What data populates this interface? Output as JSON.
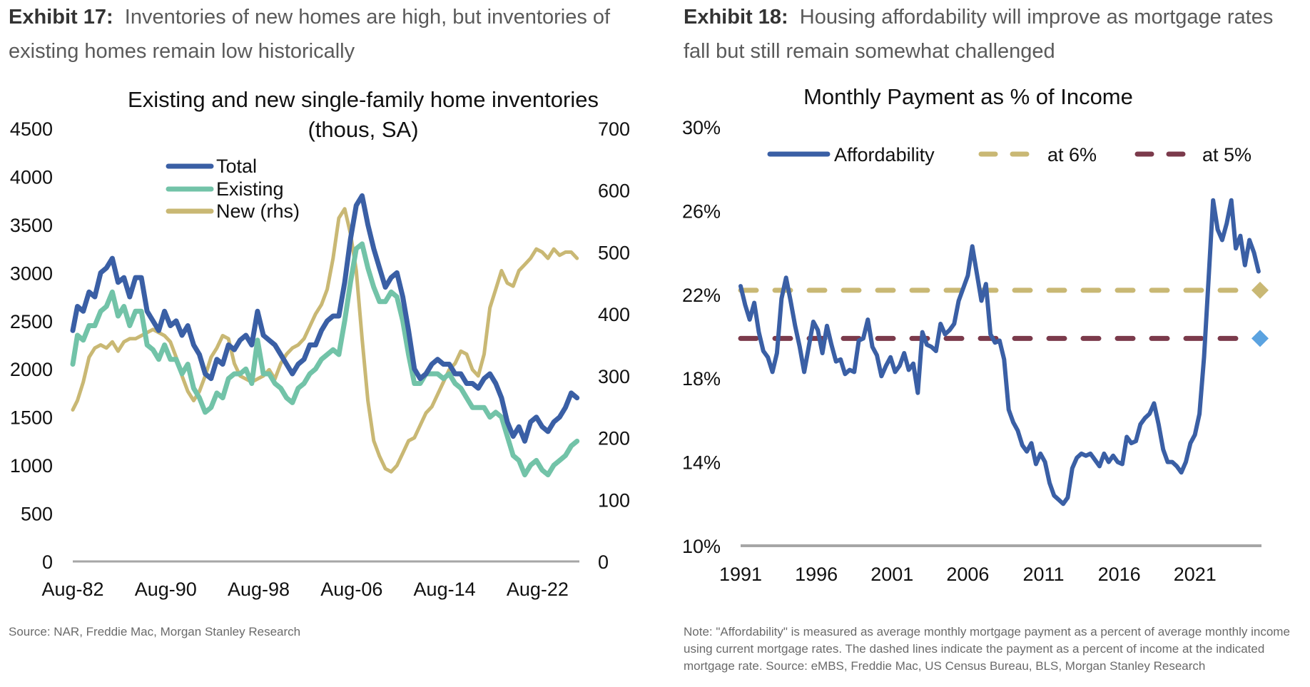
{
  "exhibit17": {
    "label": "Exhibit 17:",
    "caption": "Inventories of new homes are high, but inventories of existing homes remain low historically",
    "source": "Source: NAR, Freddie Mac, Morgan Stanley Research"
  },
  "exhibit18": {
    "label": "Exhibit 18:",
    "caption": "Housing affordability will improve as mortgage rates fall but still remain somewhat challenged",
    "note": "Note: \"Affordability\" is measured as average monthly mortgage payment as a percent of average monthly income using current mortgage rates. The dashed lines indicate the payment as a percent of income at the indicated mortgage rate. Source: eMBS, Freddie Mac, US Census Bureau, BLS, Morgan Stanley Research"
  },
  "chart_data": [
    {
      "type": "line",
      "title": "Existing and new single-family home inventories",
      "subtitle": "(thous, SA)",
      "xlabel": "",
      "ylabel": "",
      "x_tick_labels": [
        "Aug-82",
        "Aug-90",
        "Aug-98",
        "Aug-06",
        "Aug-14",
        "Aug-22"
      ],
      "x_tick_years": [
        1982.6,
        1990.6,
        1998.6,
        2006.6,
        2014.6,
        2022.6
      ],
      "xlim": [
        1982.6,
        2026.2
      ],
      "y_left": {
        "ylim": [
          0,
          4500
        ],
        "ticks": [
          0,
          500,
          1000,
          1500,
          2000,
          2500,
          3000,
          3500,
          4000,
          4500
        ]
      },
      "y_right": {
        "ylim": [
          0,
          700
        ],
        "ticks": [
          0,
          100,
          200,
          300,
          400,
          500,
          600,
          700
        ]
      },
      "grid": false,
      "legend": {
        "placement": "top-left",
        "entries": [
          "Total",
          "Existing",
          "New (rhs)"
        ]
      },
      "series": [
        {
          "name": "Total",
          "axis": "left",
          "color": "#3a5fa5",
          "x": [
            1982.6,
            1983.0,
            1983.5,
            1984.0,
            1984.5,
            1985.0,
            1985.5,
            1986.0,
            1986.5,
            1987.0,
            1987.5,
            1988.0,
            1988.5,
            1989.0,
            1989.5,
            1990.0,
            1990.5,
            1991.0,
            1991.5,
            1992.0,
            1992.5,
            1993.0,
            1993.5,
            1994.0,
            1994.5,
            1995.0,
            1995.5,
            1996.0,
            1996.5,
            1997.0,
            1997.5,
            1998.0,
            1998.5,
            1999.0,
            1999.5,
            2000.0,
            2000.5,
            2001.0,
            2001.5,
            2002.0,
            2002.5,
            2003.0,
            2003.5,
            2004.0,
            2004.5,
            2005.0,
            2005.5,
            2006.0,
            2006.5,
            2007.0,
            2007.5,
            2008.0,
            2008.5,
            2009.0,
            2009.5,
            2010.0,
            2010.5,
            2011.0,
            2011.5,
            2012.0,
            2012.5,
            2013.0,
            2013.5,
            2014.0,
            2014.5,
            2015.0,
            2015.5,
            2016.0,
            2016.5,
            2017.0,
            2017.5,
            2018.0,
            2018.5,
            2019.0,
            2019.5,
            2020.0,
            2020.5,
            2021.0,
            2021.5,
            2022.0,
            2022.5,
            2023.0,
            2023.5,
            2024.0,
            2024.5,
            2025.0,
            2025.5,
            2026.0
          ],
          "values": [
            2400,
            2650,
            2600,
            2800,
            2750,
            3000,
            3050,
            3150,
            2900,
            2950,
            2750,
            2950,
            2950,
            2600,
            2500,
            2400,
            2600,
            2450,
            2500,
            2350,
            2450,
            2250,
            2150,
            1950,
            1900,
            2100,
            2050,
            2250,
            2200,
            2300,
            2350,
            2250,
            2600,
            2350,
            2300,
            2250,
            2150,
            2050,
            1950,
            2050,
            2100,
            2250,
            2250,
            2400,
            2500,
            2550,
            2550,
            2900,
            3350,
            3700,
            3800,
            3500,
            3250,
            3050,
            2850,
            2950,
            3000,
            2750,
            2400,
            2000,
            1900,
            1950,
            2050,
            2100,
            2050,
            2050,
            1950,
            1950,
            1850,
            1850,
            1800,
            1900,
            1950,
            1850,
            1700,
            1450,
            1300,
            1400,
            1250,
            1450,
            1500,
            1400,
            1350,
            1450,
            1500,
            1600,
            1750,
            1700
          ]
        },
        {
          "name": "Existing",
          "axis": "left",
          "color": "#72c3a8",
          "x": [
            1982.6,
            1983.0,
            1983.5,
            1984.0,
            1984.5,
            1985.0,
            1985.5,
            1986.0,
            1986.5,
            1987.0,
            1987.5,
            1988.0,
            1988.5,
            1989.0,
            1989.5,
            1990.0,
            1990.5,
            1991.0,
            1991.5,
            1992.0,
            1992.5,
            1993.0,
            1993.5,
            1994.0,
            1994.5,
            1995.0,
            1995.5,
            1996.0,
            1996.5,
            1997.0,
            1997.5,
            1998.0,
            1998.5,
            1999.0,
            1999.5,
            2000.0,
            2000.5,
            2001.0,
            2001.5,
            2002.0,
            2002.5,
            2003.0,
            2003.5,
            2004.0,
            2004.5,
            2005.0,
            2005.5,
            2006.0,
            2006.5,
            2007.0,
            2007.5,
            2008.0,
            2008.5,
            2009.0,
            2009.5,
            2010.0,
            2010.5,
            2011.0,
            2011.5,
            2012.0,
            2012.5,
            2013.0,
            2013.5,
            2014.0,
            2014.5,
            2015.0,
            2015.5,
            2016.0,
            2016.5,
            2017.0,
            2017.5,
            2018.0,
            2018.5,
            2019.0,
            2019.5,
            2020.0,
            2020.5,
            2021.0,
            2021.5,
            2022.0,
            2022.5,
            2023.0,
            2023.5,
            2024.0,
            2024.5,
            2025.0,
            2025.5,
            2026.0
          ],
          "values": [
            2050,
            2350,
            2300,
            2450,
            2450,
            2600,
            2650,
            2800,
            2550,
            2650,
            2450,
            2600,
            2600,
            2250,
            2200,
            2100,
            2250,
            2100,
            2100,
            1950,
            2050,
            1800,
            1700,
            1550,
            1600,
            1750,
            1700,
            1900,
            1950,
            1950,
            2000,
            1850,
            2300,
            1950,
            1950,
            1850,
            1800,
            1700,
            1650,
            1800,
            1850,
            1950,
            2000,
            2100,
            2150,
            2200,
            2150,
            2500,
            2900,
            3250,
            3300,
            3050,
            2850,
            2700,
            2700,
            2800,
            2750,
            2500,
            2150,
            1850,
            1850,
            1950,
            1950,
            1950,
            1900,
            1950,
            1850,
            1800,
            1700,
            1600,
            1600,
            1600,
            1500,
            1550,
            1500,
            1300,
            1100,
            1050,
            900,
            1000,
            1050,
            950,
            900,
            1000,
            1050,
            1100,
            1200,
            1250
          ]
        },
        {
          "name": "New (rhs)",
          "axis": "right",
          "color": "#c9b874",
          "x": [
            1982.6,
            1983.0,
            1983.5,
            1984.0,
            1984.5,
            1985.0,
            1985.5,
            1986.0,
            1986.5,
            1987.0,
            1987.5,
            1988.0,
            1988.5,
            1989.0,
            1989.5,
            1990.0,
            1990.5,
            1991.0,
            1991.5,
            1992.0,
            1992.5,
            1993.0,
            1993.5,
            1994.0,
            1994.5,
            1995.0,
            1995.5,
            1996.0,
            1996.5,
            1997.0,
            1997.5,
            1998.0,
            1998.5,
            1999.0,
            1999.5,
            2000.0,
            2000.5,
            2001.0,
            2001.5,
            2002.0,
            2002.5,
            2003.0,
            2003.5,
            2004.0,
            2004.5,
            2005.0,
            2005.5,
            2006.0,
            2006.5,
            2007.0,
            2007.5,
            2008.0,
            2008.5,
            2009.0,
            2009.5,
            2010.0,
            2010.5,
            2011.0,
            2011.5,
            2012.0,
            2012.5,
            2013.0,
            2013.5,
            2014.0,
            2014.5,
            2015.0,
            2015.5,
            2016.0,
            2016.5,
            2017.0,
            2017.5,
            2018.0,
            2018.5,
            2019.0,
            2019.5,
            2020.0,
            2020.5,
            2021.0,
            2021.5,
            2022.0,
            2022.5,
            2023.0,
            2023.5,
            2024.0,
            2024.5,
            2025.0,
            2025.5,
            2026.0
          ],
          "values": [
            245,
            260,
            290,
            330,
            345,
            350,
            345,
            355,
            340,
            355,
            360,
            360,
            365,
            370,
            375,
            370,
            365,
            355,
            330,
            300,
            275,
            260,
            275,
            300,
            330,
            345,
            365,
            360,
            320,
            300,
            295,
            290,
            295,
            300,
            310,
            295,
            320,
            335,
            345,
            350,
            360,
            380,
            400,
            415,
            440,
            490,
            555,
            570,
            530,
            470,
            360,
            260,
            195,
            170,
            150,
            145,
            155,
            175,
            195,
            200,
            220,
            240,
            250,
            270,
            290,
            310,
            320,
            340,
            335,
            310,
            300,
            335,
            410,
            440,
            470,
            450,
            445,
            470,
            480,
            490,
            505,
            500,
            490,
            505,
            495,
            500,
            500,
            490
          ]
        }
      ]
    },
    {
      "type": "line",
      "title": "Monthly Payment as % of Income",
      "xlabel": "",
      "ylabel": "",
      "x_tick_labels": [
        "1991",
        "1996",
        "2001",
        "2006",
        "2011",
        "2016",
        "2021"
      ],
      "x_tick_years": [
        1991,
        1996,
        2001,
        2006,
        2011,
        2016,
        2021
      ],
      "xlim": [
        1991,
        2025.3
      ],
      "ylim": [
        10,
        30
      ],
      "y_ticks": [
        10,
        14,
        18,
        22,
        26,
        30
      ],
      "y_tick_labels": [
        "10%",
        "14%",
        "18%",
        "22%",
        "26%",
        "30%"
      ],
      "grid": false,
      "legend": {
        "placement": "top",
        "entries": [
          "Affordability",
          "at 6%",
          "at 5%"
        ]
      },
      "series": [
        {
          "name": "Affordability",
          "style": "solid",
          "color": "#3a5fa5",
          "x": [
            1991.0,
            1991.3,
            1991.6,
            1991.9,
            1992.2,
            1992.5,
            1992.8,
            1993.1,
            1993.4,
            1993.7,
            1994.0,
            1994.3,
            1994.6,
            1994.9,
            1995.2,
            1995.5,
            1995.8,
            1996.1,
            1996.4,
            1996.7,
            1997.0,
            1997.3,
            1997.6,
            1997.9,
            1998.2,
            1998.5,
            1998.8,
            1999.1,
            1999.4,
            1999.7,
            2000.0,
            2000.3,
            2000.6,
            2000.9,
            2001.2,
            2001.5,
            2001.8,
            2002.1,
            2002.4,
            2002.7,
            2003.0,
            2003.3,
            2003.6,
            2003.9,
            2004.2,
            2004.5,
            2004.8,
            2005.1,
            2005.4,
            2005.7,
            2006.0,
            2006.3,
            2006.6,
            2006.9,
            2007.2,
            2007.5,
            2007.8,
            2008.1,
            2008.4,
            2008.7,
            2009.0,
            2009.3,
            2009.6,
            2009.9,
            2010.2,
            2010.5,
            2010.8,
            2011.1,
            2011.4,
            2011.7,
            2012.0,
            2012.3,
            2012.6,
            2012.9,
            2013.2,
            2013.5,
            2013.8,
            2014.1,
            2014.4,
            2014.7,
            2015.0,
            2015.3,
            2015.6,
            2015.9,
            2016.2,
            2016.5,
            2016.8,
            2017.1,
            2017.4,
            2017.7,
            2018.0,
            2018.3,
            2018.6,
            2018.9,
            2019.2,
            2019.5,
            2019.8,
            2020.1,
            2020.4,
            2020.7,
            2021.0,
            2021.3,
            2021.6,
            2021.9,
            2022.2,
            2022.5,
            2022.8,
            2023.1,
            2023.4,
            2023.7,
            2024.0,
            2024.3,
            2024.6,
            2024.9,
            2025.2
          ],
          "values": [
            22.4,
            21.5,
            20.8,
            21.6,
            20.2,
            19.3,
            19.0,
            18.3,
            19.2,
            21.8,
            22.8,
            21.7,
            20.5,
            19.5,
            18.3,
            19.5,
            20.7,
            20.3,
            19.2,
            20.5,
            19.6,
            18.8,
            18.9,
            18.2,
            18.4,
            18.3,
            19.8,
            19.9,
            20.8,
            19.5,
            19.1,
            18.1,
            18.6,
            19.0,
            18.3,
            18.6,
            19.2,
            18.4,
            18.7,
            17.3,
            20.2,
            19.6,
            19.5,
            19.3,
            20.6,
            20.1,
            20.3,
            20.6,
            21.7,
            22.3,
            22.9,
            24.3,
            23.0,
            21.7,
            22.5,
            20.1,
            19.7,
            19.8,
            18.9,
            16.5,
            15.9,
            15.5,
            14.8,
            14.5,
            14.9,
            13.9,
            14.4,
            14.0,
            13.0,
            12.4,
            12.2,
            12.0,
            12.3,
            13.7,
            14.2,
            14.4,
            14.3,
            14.4,
            14.1,
            13.8,
            14.4,
            14.0,
            14.3,
            14.0,
            13.9,
            15.2,
            14.9,
            15.0,
            15.8,
            16.1,
            16.3,
            16.8,
            15.8,
            14.6,
            14.0,
            14.0,
            13.8,
            13.5,
            14.0,
            14.9,
            15.3,
            16.3,
            19.0,
            22.7,
            26.5,
            25.1,
            24.6,
            25.4,
            26.5,
            24.2,
            24.8,
            23.4,
            24.6,
            24.0,
            23.1
          ]
        },
        {
          "name": "at 6%",
          "style": "dashed",
          "color": "#c9b874",
          "value": 22.2,
          "end_marker": "diamond"
        },
        {
          "name": "at 5%",
          "style": "dashed",
          "color": "#7b3a4b",
          "value": 19.9,
          "end_marker": "diamond",
          "end_marker_color": "#5ba3e0"
        }
      ]
    }
  ]
}
